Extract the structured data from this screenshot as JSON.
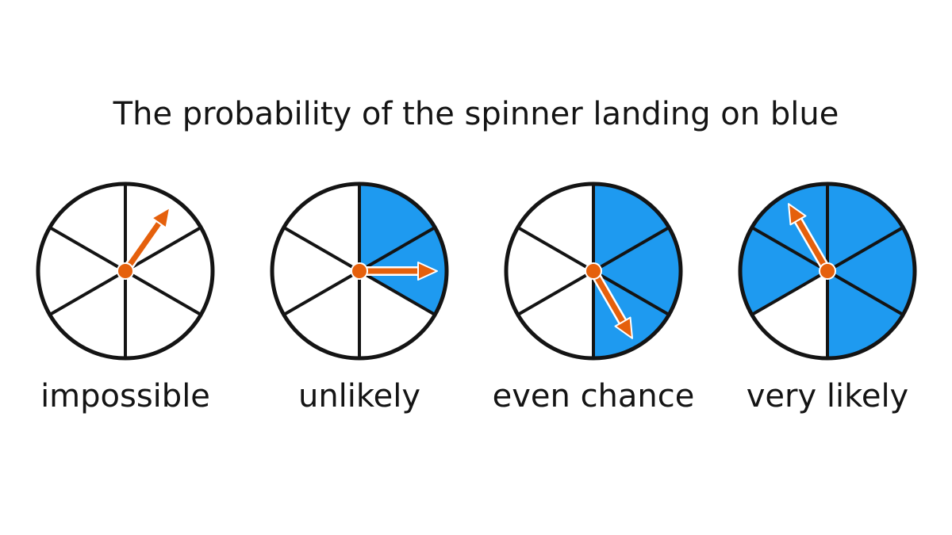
{
  "title": "The probability of the spinner landing on blue",
  "colors": {
    "blue": "#1e9af0",
    "white": "#ffffff",
    "outline": "#141414",
    "pointer": "#e5600c",
    "pointer_outline": "#ffffff"
  },
  "sections_per_spinner": 6,
  "spinners": [
    {
      "label": "impossible",
      "blue_sections": [],
      "pointer_angle_deg": 35
    },
    {
      "label": "unlikely",
      "blue_sections": [
        0,
        1
      ],
      "pointer_angle_deg": 90
    },
    {
      "label": "even chance",
      "blue_sections": [
        0,
        1,
        2
      ],
      "pointer_angle_deg": 150
    },
    {
      "label": "very likely",
      "blue_sections": [
        0,
        1,
        2,
        4,
        5
      ],
      "pointer_angle_deg": -30
    }
  ]
}
